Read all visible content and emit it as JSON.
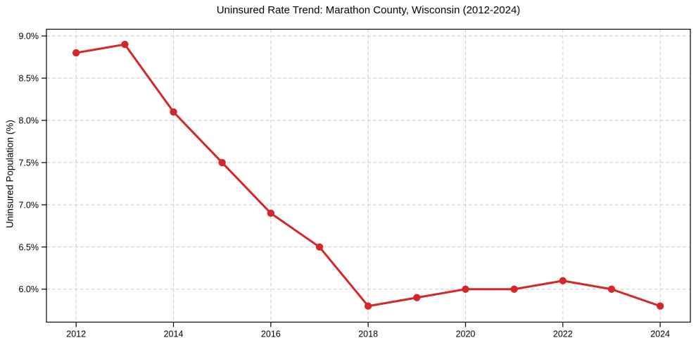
{
  "figure": {
    "title": "Uninsured Rate Trend: Marathon County, Wisconsin (2012-2024)",
    "y_axis_label": "Uninsured Population (%)"
  },
  "colors": {
    "line": "#d62728",
    "grid": "#cccccc",
    "spine": "#000000",
    "text": "#000000",
    "background": "#ffffff"
  },
  "chart_data": {
    "type": "line",
    "title": "Uninsured Rate Trend: Marathon County, Wisconsin (2012-2024)",
    "xlabel": "",
    "ylabel": "Uninsured Population (%)",
    "x": [
      2012,
      2013,
      2014,
      2015,
      2016,
      2017,
      2018,
      2019,
      2020,
      2021,
      2022,
      2023,
      2024
    ],
    "values": [
      8.8,
      8.9,
      8.1,
      7.5,
      6.9,
      6.5,
      5.8,
      5.9,
      6.0,
      6.0,
      6.1,
      6.0,
      5.8
    ],
    "xlim": [
      2011.39,
      2024.62
    ],
    "ylim": [
      5.61,
      9.08
    ],
    "xticks": [
      2012,
      2014,
      2016,
      2018,
      2020,
      2022,
      2024
    ],
    "xtick_labels": [
      "2012",
      "2014",
      "2016",
      "2018",
      "2020",
      "2022",
      "2024"
    ],
    "yticks": [
      6.0,
      6.5,
      7.0,
      7.5,
      8.0,
      8.5,
      9.0
    ],
    "ytick_labels": [
      "6.0%",
      "6.5%",
      "7.0%",
      "7.5%",
      "8.0%",
      "8.5%",
      "9.0%"
    ],
    "grid": true,
    "grid_style": "dashed",
    "legend": false,
    "marker": "circle",
    "line_width": 3,
    "marker_radius": 5.2
  }
}
